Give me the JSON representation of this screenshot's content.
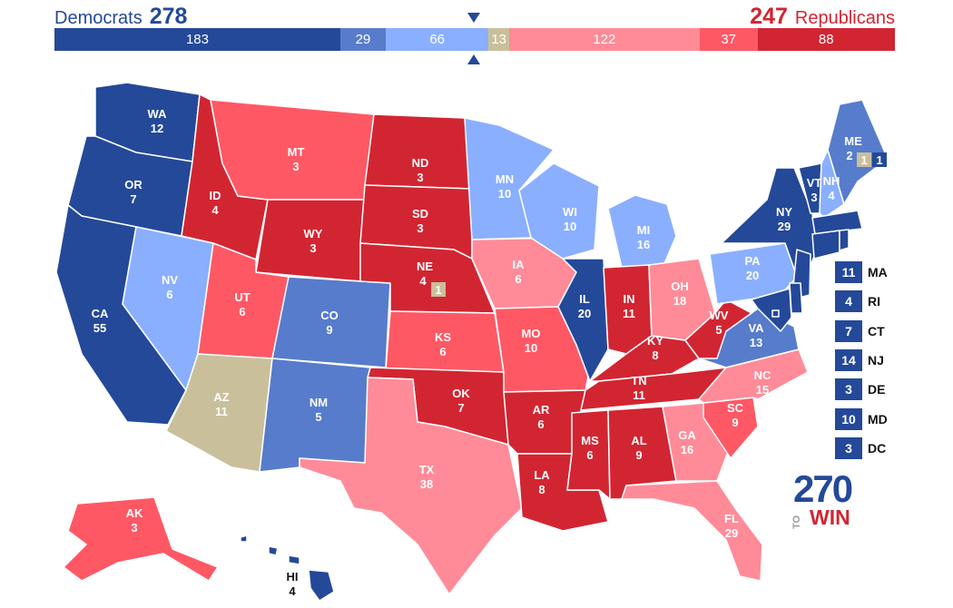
{
  "header": {
    "dem_label": "Democrats",
    "dem_total": "278",
    "rep_total": "247",
    "rep_label": "Republicans"
  },
  "colors": {
    "safe_dem": "#244999",
    "likely_dem": "#577ccc",
    "lean_dem": "#8aafff",
    "tossup": "#c9c09b",
    "lean_rep": "#ff8b98",
    "likely_rep": "#ff5865",
    "safe_rep": "#d22532"
  },
  "bar": [
    {
      "label": "183",
      "value": 183,
      "cat": "safe_dem"
    },
    {
      "label": "29",
      "value": 29,
      "cat": "likely_dem"
    },
    {
      "label": "66",
      "value": 66,
      "cat": "lean_dem"
    },
    {
      "label": "13",
      "value": 13,
      "cat": "tossup"
    },
    {
      "label": "122",
      "value": 122,
      "cat": "lean_rep"
    },
    {
      "label": "37",
      "value": 37,
      "cat": "likely_rep"
    },
    {
      "label": "88",
      "value": 88,
      "cat": "safe_rep"
    }
  ],
  "states": [
    {
      "abbr": "WA",
      "ev": "12",
      "cat": "safe_dem"
    },
    {
      "abbr": "OR",
      "ev": "7",
      "cat": "safe_dem"
    },
    {
      "abbr": "CA",
      "ev": "55",
      "cat": "safe_dem"
    },
    {
      "abbr": "NV",
      "ev": "6",
      "cat": "lean_dem"
    },
    {
      "abbr": "ID",
      "ev": "4",
      "cat": "safe_rep"
    },
    {
      "abbr": "MT",
      "ev": "3",
      "cat": "likely_rep"
    },
    {
      "abbr": "WY",
      "ev": "3",
      "cat": "safe_rep"
    },
    {
      "abbr": "UT",
      "ev": "6",
      "cat": "likely_rep"
    },
    {
      "abbr": "AZ",
      "ev": "11",
      "cat": "tossup"
    },
    {
      "abbr": "CO",
      "ev": "9",
      "cat": "likely_dem"
    },
    {
      "abbr": "NM",
      "ev": "5",
      "cat": "likely_dem"
    },
    {
      "abbr": "ND",
      "ev": "3",
      "cat": "safe_rep"
    },
    {
      "abbr": "SD",
      "ev": "3",
      "cat": "safe_rep"
    },
    {
      "abbr": "NE",
      "ev": "4",
      "cat": "safe_rep"
    },
    {
      "abbr": "KS",
      "ev": "6",
      "cat": "likely_rep"
    },
    {
      "abbr": "OK",
      "ev": "7",
      "cat": "safe_rep"
    },
    {
      "abbr": "TX",
      "ev": "38",
      "cat": "lean_rep"
    },
    {
      "abbr": "MN",
      "ev": "10",
      "cat": "lean_dem"
    },
    {
      "abbr": "IA",
      "ev": "6",
      "cat": "lean_rep"
    },
    {
      "abbr": "MO",
      "ev": "10",
      "cat": "likely_rep"
    },
    {
      "abbr": "AR",
      "ev": "6",
      "cat": "safe_rep"
    },
    {
      "abbr": "LA",
      "ev": "8",
      "cat": "safe_rep"
    },
    {
      "abbr": "WI",
      "ev": "10",
      "cat": "lean_dem"
    },
    {
      "abbr": "IL",
      "ev": "20",
      "cat": "safe_dem"
    },
    {
      "abbr": "MI",
      "ev": "16",
      "cat": "lean_dem"
    },
    {
      "abbr": "IN",
      "ev": "11",
      "cat": "safe_rep"
    },
    {
      "abbr": "OH",
      "ev": "18",
      "cat": "lean_rep"
    },
    {
      "abbr": "KY",
      "ev": "8",
      "cat": "safe_rep"
    },
    {
      "abbr": "TN",
      "ev": "11",
      "cat": "safe_rep"
    },
    {
      "abbr": "MS",
      "ev": "6",
      "cat": "safe_rep"
    },
    {
      "abbr": "AL",
      "ev": "9",
      "cat": "safe_rep"
    },
    {
      "abbr": "GA",
      "ev": "16",
      "cat": "lean_rep"
    },
    {
      "abbr": "FL",
      "ev": "29",
      "cat": "lean_rep"
    },
    {
      "abbr": "SC",
      "ev": "9",
      "cat": "likely_rep"
    },
    {
      "abbr": "NC",
      "ev": "15",
      "cat": "lean_rep"
    },
    {
      "abbr": "VA",
      "ev": "13",
      "cat": "likely_dem"
    },
    {
      "abbr": "WV",
      "ev": "5",
      "cat": "safe_rep"
    },
    {
      "abbr": "PA",
      "ev": "20",
      "cat": "lean_dem"
    },
    {
      "abbr": "NY",
      "ev": "29",
      "cat": "safe_dem"
    },
    {
      "abbr": "VT",
      "ev": "3",
      "cat": "safe_dem"
    },
    {
      "abbr": "NH",
      "ev": "4",
      "cat": "lean_dem"
    },
    {
      "abbr": "ME",
      "ev": "2",
      "cat": "likely_dem"
    },
    {
      "abbr": "AK",
      "ev": "3",
      "cat": "likely_rep"
    },
    {
      "abbr": "HI",
      "ev": "4",
      "cat": "safe_dem"
    }
  ],
  "district_boxes": {
    "ne_cd2": {
      "ev": "1",
      "cat": "tossup"
    },
    "me_cd2": {
      "ev": "1",
      "cat": "tossup"
    },
    "me_cd1": {
      "ev": "1",
      "cat": "safe_dem"
    }
  },
  "small_states": [
    {
      "ev": "11",
      "abbr": "MA",
      "cat": "safe_dem"
    },
    {
      "ev": "4",
      "abbr": "RI",
      "cat": "safe_dem"
    },
    {
      "ev": "7",
      "abbr": "CT",
      "cat": "safe_dem"
    },
    {
      "ev": "14",
      "abbr": "NJ",
      "cat": "safe_dem"
    },
    {
      "ev": "3",
      "abbr": "DE",
      "cat": "safe_dem"
    },
    {
      "ev": "10",
      "abbr": "MD",
      "cat": "safe_dem"
    },
    {
      "ev": "3",
      "abbr": "DC",
      "cat": "safe_dem"
    }
  ],
  "logo": {
    "num": "270",
    "to": "TO",
    "win": "WIN"
  }
}
